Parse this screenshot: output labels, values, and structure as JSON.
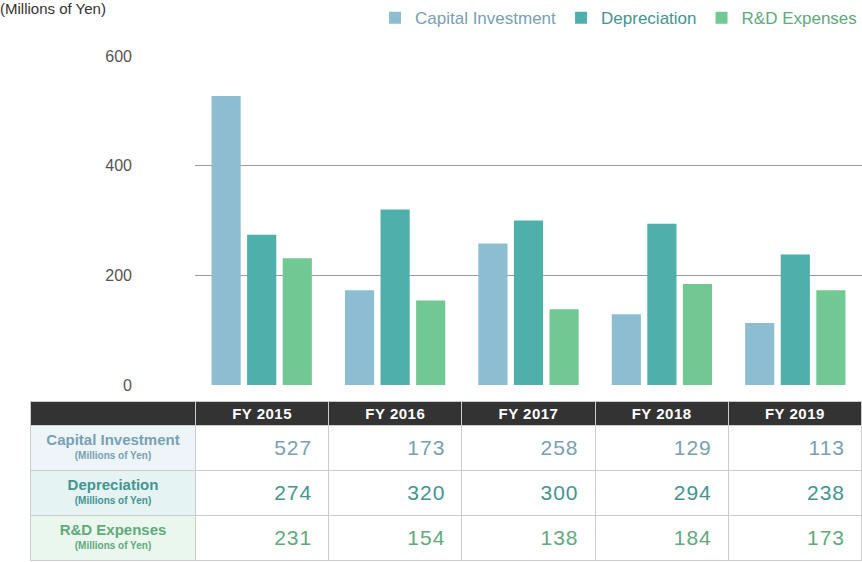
{
  "chart_data": {
    "type": "bar",
    "y_label": "(Millions of Yen)",
    "categories": [
      "FY 2015",
      "FY 2016",
      "FY 2017",
      "FY 2018",
      "FY 2019"
    ],
    "series": [
      {
        "name": "Capital Investment",
        "color": "#8dbdd2",
        "values": [
          527,
          173,
          258,
          129,
          113
        ]
      },
      {
        "name": "Depreciation",
        "color": "#4fafab",
        "values": [
          274,
          320,
          300,
          294,
          238
        ]
      },
      {
        "name": "R&D Expenses",
        "color": "#72c892",
        "values": [
          231,
          154,
          138,
          184,
          173
        ]
      }
    ],
    "ylim": [
      0,
      600
    ],
    "yticks": [
      0,
      200,
      400,
      600
    ],
    "grid": true,
    "legend": "upper right",
    "tick_labels": "y"
  },
  "table": {
    "row_unit": "(Millions of Yen)"
  }
}
